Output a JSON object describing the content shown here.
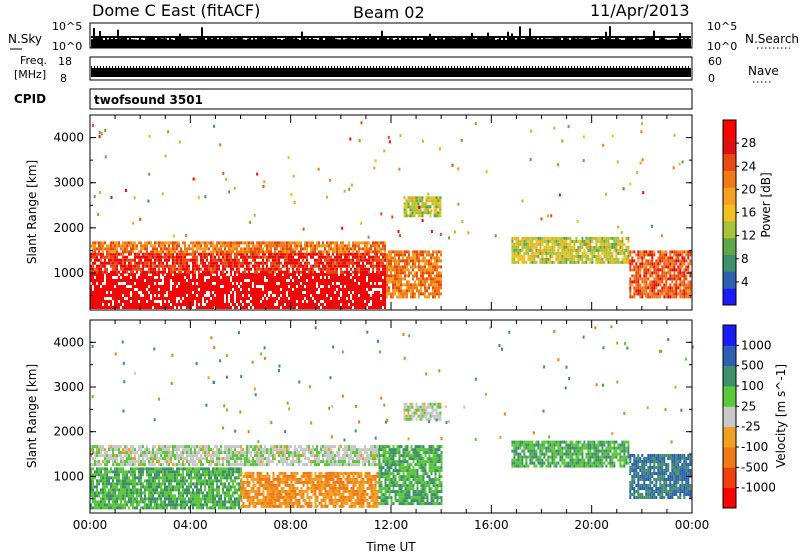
{
  "header": {
    "title": "Dome C East (fitACF)",
    "beam": "Beam 02",
    "date": "11/Apr/2013"
  },
  "top_panels": {
    "nsky_label": "N.Sky",
    "nsky_ticks": [
      "10^5",
      "10^0"
    ],
    "nsearch_label": "N.Search",
    "nsearch_ticks": [
      "10^5",
      "10^0"
    ],
    "freq_label_1": "Freq.",
    "freq_label_2": "[MHz]",
    "freq_ticks": [
      "18",
      "8"
    ],
    "nave_label": "Nave",
    "nave_ticks": [
      "60",
      "0"
    ],
    "cpid_label": "CPID",
    "cpid_value": "twofsound 3501"
  },
  "chart_data": [
    {
      "type": "heatmap",
      "name": "power",
      "ylabel": "Slant Range [km]",
      "y_ticks": [
        "1000",
        "2000",
        "3000",
        "4000"
      ],
      "y_tick_values": [
        1000,
        2000,
        3000,
        4000
      ],
      "ylim": [
        180,
        4500
      ],
      "xlim": [
        0,
        24
      ],
      "colorbar_label": "Power [dB]",
      "colorbar_ticks": [
        "4",
        "8",
        "12",
        "16",
        "20",
        "24",
        "28"
      ],
      "colorbar_range": [
        0,
        32
      ],
      "colorbar_colors": [
        "#1a1aff",
        "#2c5fb0",
        "#3f8f6c",
        "#5fa84a",
        "#a8c23a",
        "#f0c020",
        "#f5a020",
        "#f07a18",
        "#e84a14",
        "#e01010",
        "#ff0000"
      ],
      "bands": [
        {
          "t0": 0.0,
          "t1": 11.8,
          "r0": 250,
          "r1": 1000,
          "value": 31
        },
        {
          "t0": 0.0,
          "t1": 11.8,
          "r0": 1000,
          "r1": 1450,
          "value": 27
        },
        {
          "t0": 0.0,
          "t1": 11.8,
          "r0": 1450,
          "r1": 1700,
          "value": 22
        },
        {
          "t0": 11.8,
          "t1": 14.0,
          "r0": 500,
          "r1": 1500,
          "value": 22
        },
        {
          "t0": 12.5,
          "t1": 14.0,
          "r0": 2300,
          "r1": 2700,
          "value": 14
        },
        {
          "t0": 16.8,
          "t1": 21.5,
          "r0": 1250,
          "r1": 1800,
          "value": 14
        },
        {
          "t0": 21.5,
          "t1": 23.9,
          "r0": 500,
          "r1": 1500,
          "value": 24
        }
      ]
    },
    {
      "type": "heatmap",
      "name": "velocity",
      "xlabel": "Time UT",
      "x_ticks": [
        "00:00",
        "04:00",
        "08:00",
        "12:00",
        "16:00",
        "20:00",
        "00:00"
      ],
      "x_tick_values": [
        0,
        4,
        8,
        12,
        16,
        20,
        24
      ],
      "ylabel": "Slant Range [km]",
      "y_ticks": [
        "1000",
        "2000",
        "3000",
        "4000"
      ],
      "y_tick_values": [
        1000,
        2000,
        3000,
        4000
      ],
      "ylim": [
        180,
        4500
      ],
      "xlim": [
        0,
        24
      ],
      "colorbar_label": "Velocity [m s^-1]",
      "colorbar_ticks": [
        "-1000",
        "-500",
        "-100",
        "-25",
        "25",
        "100",
        "500",
        "1000"
      ],
      "colorbar_colors": [
        "#ff0000",
        "#f04010",
        "#f07a18",
        "#f0a020",
        "#c8c8c8",
        "#5ac83a",
        "#3f8f6c",
        "#2c5fb0",
        "#1a1aff"
      ],
      "bands": [
        {
          "t0": 0.0,
          "t1": 6.0,
          "r0": 300,
          "r1": 1200,
          "value": 100
        },
        {
          "t0": 6.0,
          "t1": 11.5,
          "r0": 300,
          "r1": 1100,
          "value": -100
        },
        {
          "t0": 0.0,
          "t1": 11.5,
          "r0": 1250,
          "r1": 1700,
          "value": 10
        },
        {
          "t0": 11.5,
          "t1": 14.0,
          "r0": 400,
          "r1": 1700,
          "value": 100
        },
        {
          "t0": 12.5,
          "t1": 14.0,
          "r0": 2300,
          "r1": 2650,
          "value": 10
        },
        {
          "t0": 16.8,
          "t1": 21.5,
          "r0": 1250,
          "r1": 1800,
          "value": 100
        },
        {
          "t0": 21.5,
          "t1": 23.9,
          "r0": 500,
          "r1": 1500,
          "value": 500
        }
      ]
    }
  ]
}
